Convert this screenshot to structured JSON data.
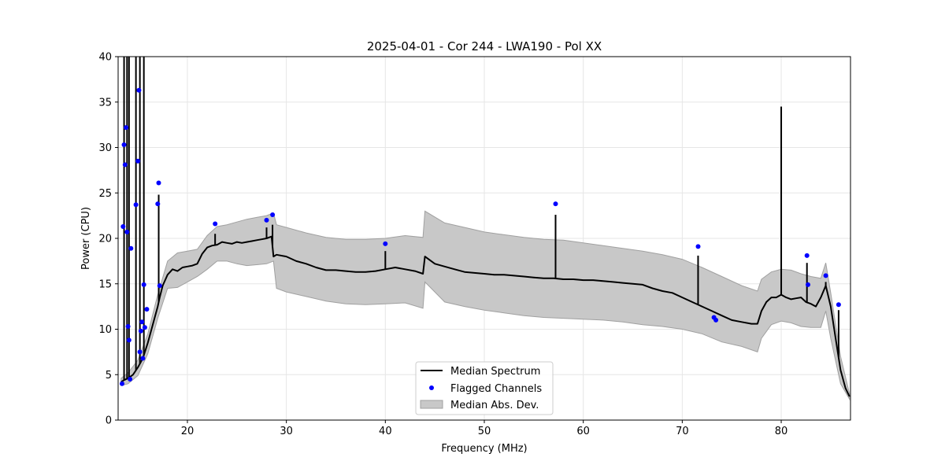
{
  "chart_data": {
    "type": "line",
    "title": "2025-04-01 - Cor 244 - LWA190 - Pol XX",
    "xlabel": "Frequency (MHz)",
    "ylabel": "Power (CPU)",
    "xlim": [
      13.0,
      87.0
    ],
    "ylim": [
      0,
      40
    ],
    "xticks": [
      20,
      30,
      40,
      50,
      60,
      70,
      80
    ],
    "yticks": [
      0,
      5,
      10,
      15,
      20,
      25,
      30,
      35,
      40
    ],
    "grid": true,
    "legend_position": "lower-center",
    "legend": [
      {
        "key": "median",
        "label": "Median Spectrum"
      },
      {
        "key": "flagged",
        "label": "Flagged Channels"
      },
      {
        "key": "mad",
        "label": "Median Abs. Dev."
      }
    ],
    "colors": {
      "median": "#000000",
      "flagged": "#0000ff",
      "mad_fill": "#c8c8c8",
      "mad_edge": "#a0a0a0",
      "grid": "#e6e6e6"
    },
    "series": [
      {
        "name": "Median Spectrum",
        "x": [
          13.3,
          13.6,
          14.0,
          14.5,
          15.0,
          15.5,
          16.0,
          16.5,
          17.0,
          17.2,
          17.5,
          18.0,
          18.5,
          19.0,
          19.5,
          20.0,
          20.5,
          21.0,
          21.5,
          22.0,
          22.5,
          23.0,
          23.5,
          24.0,
          24.5,
          25.0,
          25.5,
          26.0,
          26.5,
          27.0,
          27.5,
          28.0,
          28.5,
          28.7,
          29.0,
          30.0,
          31.0,
          32.0,
          33.0,
          34.0,
          35.0,
          36.0,
          37.0,
          38.0,
          39.0,
          40.0,
          41.0,
          42.0,
          43.0,
          43.8,
          44.0,
          45.0,
          46.0,
          47.0,
          48.0,
          49.0,
          50.0,
          51.0,
          52.0,
          53.0,
          54.0,
          55.0,
          56.0,
          57.0,
          58.0,
          59.0,
          60.0,
          61.0,
          62.0,
          63.0,
          64.0,
          65.0,
          66.0,
          67.0,
          68.0,
          69.0,
          70.0,
          71.0,
          72.0,
          73.0,
          74.0,
          75.0,
          76.0,
          77.0,
          77.6,
          78.0,
          78.5,
          79.0,
          79.5,
          80.0,
          80.5,
          81.0,
          81.5,
          82.0,
          82.5,
          83.0,
          83.5,
          84.0,
          84.5,
          85.0,
          85.5,
          86.0,
          86.5,
          86.9
        ],
        "values": [
          4.2,
          4.4,
          4.6,
          5.0,
          5.8,
          6.8,
          8.5,
          10.5,
          12.5,
          13.5,
          14.8,
          16.0,
          16.6,
          16.4,
          16.8,
          16.9,
          17.0,
          17.2,
          18.3,
          19.0,
          19.2,
          19.3,
          19.6,
          19.5,
          19.4,
          19.6,
          19.5,
          19.6,
          19.7,
          19.8,
          19.9,
          20.0,
          20.2,
          18.0,
          18.2,
          18.0,
          17.5,
          17.2,
          16.8,
          16.5,
          16.5,
          16.4,
          16.3,
          16.3,
          16.4,
          16.6,
          16.8,
          16.6,
          16.4,
          16.1,
          18.0,
          17.2,
          16.9,
          16.6,
          16.3,
          16.2,
          16.1,
          16.0,
          16.0,
          15.9,
          15.8,
          15.7,
          15.6,
          15.6,
          15.5,
          15.5,
          15.4,
          15.4,
          15.3,
          15.2,
          15.1,
          15.0,
          14.9,
          14.5,
          14.2,
          14.0,
          13.5,
          13.0,
          12.5,
          12.0,
          11.5,
          11.0,
          10.8,
          10.6,
          10.6,
          12.0,
          13.0,
          13.5,
          13.5,
          13.8,
          13.5,
          13.3,
          13.4,
          13.5,
          13.0,
          12.8,
          12.5,
          13.5,
          14.8,
          12.5,
          9.0,
          5.5,
          3.5,
          2.6
        ]
      },
      {
        "name": "Median Abs. Dev.",
        "x": [
          13.3,
          14.0,
          15.0,
          16.0,
          17.0,
          18.0,
          19.0,
          20.0,
          21.0,
          22.0,
          23.0,
          24.0,
          25.0,
          26.0,
          27.0,
          28.0,
          28.7,
          29.0,
          30.0,
          32.0,
          34.0,
          36.0,
          38.0,
          40.0,
          42.0,
          43.8,
          44.0,
          46.0,
          48.0,
          50.0,
          52.0,
          54.0,
          56.0,
          58.0,
          60.0,
          62.0,
          64.0,
          66.0,
          68.0,
          70.0,
          72.0,
          74.0,
          76.0,
          77.6,
          78.0,
          79.0,
          80.0,
          81.0,
          82.0,
          83.0,
          84.0,
          84.5,
          85.0,
          86.0,
          86.9
        ],
        "upper": [
          4.6,
          5.2,
          6.6,
          9.5,
          13.8,
          17.5,
          18.4,
          18.6,
          18.8,
          20.3,
          21.3,
          21.5,
          21.8,
          22.1,
          22.3,
          22.5,
          22.8,
          21.5,
          21.2,
          20.6,
          20.1,
          19.9,
          19.9,
          20.0,
          20.3,
          20.1,
          23.0,
          21.7,
          21.2,
          20.7,
          20.4,
          20.1,
          19.9,
          19.8,
          19.5,
          19.2,
          18.9,
          18.6,
          18.2,
          17.7,
          16.8,
          15.8,
          14.8,
          14.2,
          15.5,
          16.3,
          16.6,
          16.5,
          16.1,
          15.8,
          15.6,
          17.3,
          14.0,
          7.0,
          2.9
        ],
        "lower": [
          3.8,
          4.0,
          4.9,
          7.3,
          11.2,
          14.5,
          14.6,
          15.2,
          15.8,
          16.6,
          17.5,
          17.5,
          17.2,
          17.0,
          17.1,
          17.2,
          17.5,
          14.5,
          14.1,
          13.6,
          13.1,
          12.8,
          12.7,
          12.8,
          12.9,
          12.3,
          15.2,
          13.0,
          12.5,
          12.1,
          11.8,
          11.5,
          11.3,
          11.2,
          11.1,
          11.0,
          10.8,
          10.5,
          10.3,
          10.0,
          9.5,
          8.6,
          8.1,
          7.5,
          9.0,
          10.5,
          10.9,
          10.7,
          10.3,
          10.2,
          10.2,
          12.0,
          9.0,
          4.0,
          2.3
        ]
      },
      {
        "name": "Flagged Channels",
        "x": [
          13.4,
          13.5,
          13.6,
          13.7,
          13.8,
          13.9,
          14.0,
          14.1,
          14.2,
          14.3,
          14.8,
          15.0,
          15.1,
          15.2,
          15.3,
          15.4,
          15.5,
          15.6,
          15.7,
          15.9,
          17.0,
          17.1,
          17.2,
          22.8,
          28.0,
          28.6,
          40.0,
          57.2,
          71.6,
          73.2,
          73.4,
          82.6,
          82.7,
          84.5,
          85.8
        ],
        "y": [
          4.0,
          21.3,
          30.3,
          28.1,
          32.2,
          20.7,
          10.3,
          8.8,
          4.5,
          18.9,
          23.7,
          28.5,
          36.3,
          7.5,
          9.8,
          10.8,
          6.8,
          14.9,
          10.2,
          12.2,
          23.8,
          26.1,
          14.8,
          21.6,
          22.0,
          22.6,
          19.4,
          23.8,
          19.1,
          11.3,
          11.0,
          18.1,
          14.9,
          15.9,
          12.7
        ]
      }
    ],
    "flag_spikes": [
      {
        "x": 13.6,
        "top": 40
      },
      {
        "x": 13.9,
        "top": 40
      },
      {
        "x": 14.1,
        "top": 40
      },
      {
        "x": 14.8,
        "top": 40
      },
      {
        "x": 15.2,
        "top": 40
      },
      {
        "x": 15.6,
        "top": 40
      },
      {
        "x": 17.1,
        "top": 24.8
      },
      {
        "x": 22.8,
        "top": 20.5
      },
      {
        "x": 28.0,
        "top": 21.2
      },
      {
        "x": 28.6,
        "top": 21.5
      },
      {
        "x": 40.0,
        "top": 18.6
      },
      {
        "x": 57.2,
        "top": 22.6
      },
      {
        "x": 71.6,
        "top": 18.1
      },
      {
        "x": 80.0,
        "top": 34.5
      },
      {
        "x": 82.6,
        "top": 17.3
      },
      {
        "x": 84.5,
        "top": 15.2
      },
      {
        "x": 85.8,
        "top": 12.1
      }
    ]
  }
}
